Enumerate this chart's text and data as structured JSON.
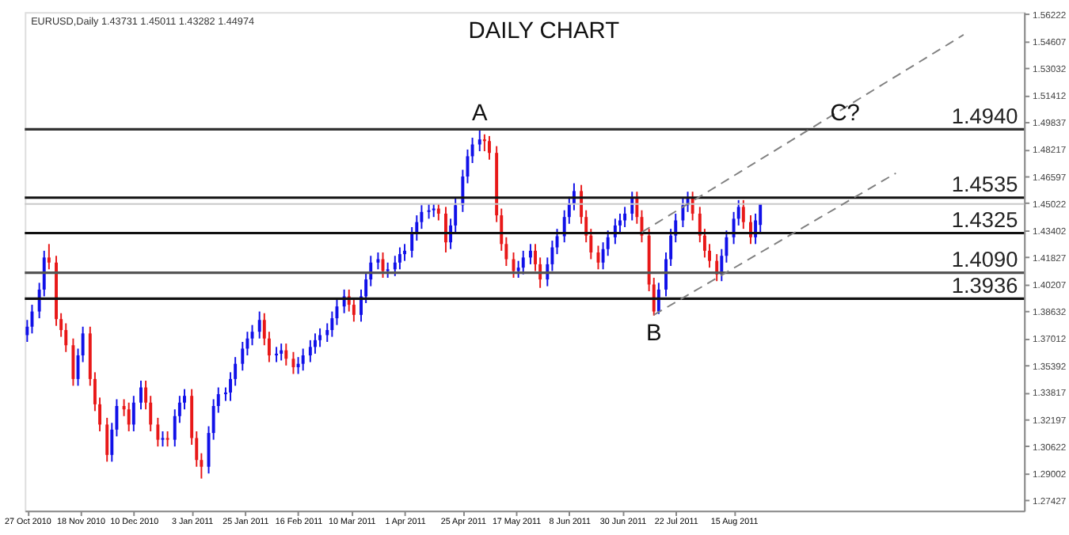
{
  "chart_data": {
    "type": "candlestick",
    "title": "DAILY CHART",
    "annotations": [
      "EURUSD,Daily 1.43731 1.45011 1.43282 1.44974",
      {
        "text": "A",
        "x": "2011-05-02",
        "y": 1.494
      },
      {
        "text": "B",
        "x": "2011-07-13",
        "y": 1.3836
      },
      {
        "text": "C?",
        "x": "2011-09-30",
        "y": 1.494
      }
    ],
    "x": [
      "2010-10-27",
      "2010-10-29",
      "2010-11-01",
      "2010-11-03",
      "2010-11-05",
      "2010-11-08",
      "2010-11-10",
      "2010-11-12",
      "2010-11-15",
      "2010-11-17",
      "2010-11-19",
      "2010-11-22",
      "2010-11-24",
      "2010-11-26",
      "2010-11-29",
      "2010-12-01",
      "2010-12-03",
      "2010-12-06",
      "2010-12-08",
      "2010-12-10",
      "2010-12-13",
      "2010-12-15",
      "2010-12-17",
      "2010-12-20",
      "2010-12-22",
      "2010-12-24",
      "2010-12-27",
      "2010-12-29",
      "2010-12-31",
      "2011-01-03",
      "2011-01-05",
      "2011-01-07",
      "2011-01-10",
      "2011-01-12",
      "2011-01-14",
      "2011-01-17",
      "2011-01-19",
      "2011-01-21",
      "2011-01-24",
      "2011-01-26",
      "2011-01-28",
      "2011-01-31",
      "2011-02-02",
      "2011-02-04",
      "2011-02-07",
      "2011-02-09",
      "2011-02-11",
      "2011-02-14",
      "2011-02-16",
      "2011-02-18",
      "2011-02-21",
      "2011-02-23",
      "2011-02-25",
      "2011-02-28",
      "2011-03-02",
      "2011-03-04",
      "2011-03-07",
      "2011-03-09",
      "2011-03-11",
      "2011-03-14",
      "2011-03-16",
      "2011-03-18",
      "2011-03-21",
      "2011-03-23",
      "2011-03-25",
      "2011-03-28",
      "2011-03-30",
      "2011-04-01",
      "2011-04-04",
      "2011-04-06",
      "2011-04-08",
      "2011-04-11",
      "2011-04-13",
      "2011-04-15",
      "2011-04-18",
      "2011-04-20",
      "2011-04-22",
      "2011-04-25",
      "2011-04-27",
      "2011-04-29",
      "2011-05-02",
      "2011-05-04",
      "2011-05-06",
      "2011-05-09",
      "2011-05-11",
      "2011-05-13",
      "2011-05-16",
      "2011-05-18",
      "2011-05-20",
      "2011-05-23",
      "2011-05-25",
      "2011-05-27",
      "2011-05-30",
      "2011-06-01",
      "2011-06-03",
      "2011-06-06",
      "2011-06-08",
      "2011-06-10",
      "2011-06-13",
      "2011-06-15",
      "2011-06-17",
      "2011-06-20",
      "2011-06-22",
      "2011-06-24",
      "2011-06-27",
      "2011-06-29",
      "2011-07-01",
      "2011-07-04",
      "2011-07-06",
      "2011-07-08",
      "2011-07-11",
      "2011-07-13",
      "2011-07-15",
      "2011-07-18",
      "2011-07-20",
      "2011-07-22",
      "2011-07-25",
      "2011-07-27",
      "2011-07-29",
      "2011-08-01",
      "2011-08-03",
      "2011-08-05",
      "2011-08-08",
      "2011-08-10",
      "2011-08-12",
      "2011-08-15",
      "2011-08-17",
      "2011-08-19",
      "2011-08-22",
      "2011-08-24",
      "2011-08-26"
    ],
    "ohlc": [
      [
        1.372,
        1.381,
        1.368,
        1.377
      ],
      [
        1.377,
        1.39,
        1.373,
        1.386
      ],
      [
        1.386,
        1.403,
        1.382,
        1.399
      ],
      [
        1.399,
        1.422,
        1.395,
        1.418
      ],
      [
        1.418,
        1.426,
        1.411,
        1.415
      ],
      [
        1.415,
        1.419,
        1.3775,
        1.3815
      ],
      [
        1.3815,
        1.385,
        1.371,
        1.375
      ],
      [
        1.375,
        1.379,
        1.362,
        1.366
      ],
      [
        1.366,
        1.37,
        1.342,
        1.346
      ],
      [
        1.346,
        1.364,
        1.342,
        1.36
      ],
      [
        1.36,
        1.377,
        1.356,
        1.373
      ],
      [
        1.373,
        1.377,
        1.342,
        1.346
      ],
      [
        1.346,
        1.35,
        1.327,
        1.331
      ],
      [
        1.331,
        1.335,
        1.315,
        1.319
      ],
      [
        1.319,
        1.323,
        1.297,
        1.301
      ],
      [
        1.301,
        1.32,
        1.297,
        1.316
      ],
      [
        1.316,
        1.334,
        1.312,
        1.33
      ],
      [
        1.33,
        1.334,
        1.324,
        1.328
      ],
      [
        1.328,
        1.332,
        1.315,
        1.319
      ],
      [
        1.319,
        1.336,
        1.315,
        1.332
      ],
      [
        1.332,
        1.345,
        1.328,
        1.341
      ],
      [
        1.341,
        1.345,
        1.328,
        1.332
      ],
      [
        1.332,
        1.336,
        1.315,
        1.319
      ],
      [
        1.319,
        1.323,
        1.306,
        1.31
      ],
      [
        1.31,
        1.315,
        1.306,
        1.311
      ],
      [
        1.311,
        1.315,
        1.306,
        1.31
      ],
      [
        1.31,
        1.328,
        1.306,
        1.324
      ],
      [
        1.324,
        1.336,
        1.32,
        1.332
      ],
      [
        1.332,
        1.34,
        1.328,
        1.336
      ],
      [
        1.336,
        1.34,
        1.307,
        1.311
      ],
      [
        1.311,
        1.315,
        1.294,
        1.298
      ],
      [
        1.298,
        1.302,
        1.287,
        1.294
      ],
      [
        1.294,
        1.318,
        1.29,
        1.314
      ],
      [
        1.314,
        1.334,
        1.31,
        1.33
      ],
      [
        1.33,
        1.341,
        1.326,
        1.337
      ],
      [
        1.337,
        1.341,
        1.333,
        1.338
      ],
      [
        1.338,
        1.35,
        1.333,
        1.346
      ],
      [
        1.346,
        1.359,
        1.342,
        1.355
      ],
      [
        1.355,
        1.368,
        1.351,
        1.364
      ],
      [
        1.364,
        1.374,
        1.36,
        1.37
      ],
      [
        1.37,
        1.378,
        1.366,
        1.374
      ],
      [
        1.374,
        1.386,
        1.37,
        1.381
      ],
      [
        1.381,
        1.385,
        1.366,
        1.37
      ],
      [
        1.37,
        1.374,
        1.356,
        1.36
      ],
      [
        1.36,
        1.365,
        1.356,
        1.361
      ],
      [
        1.361,
        1.367,
        1.357,
        1.363
      ],
      [
        1.363,
        1.367,
        1.354,
        1.358
      ],
      [
        1.358,
        1.362,
        1.349,
        1.353
      ],
      [
        1.353,
        1.359,
        1.349,
        1.355
      ],
      [
        1.355,
        1.364,
        1.351,
        1.36
      ],
      [
        1.36,
        1.369,
        1.356,
        1.365
      ],
      [
        1.365,
        1.373,
        1.361,
        1.369
      ],
      [
        1.369,
        1.376,
        1.365,
        1.372
      ],
      [
        1.372,
        1.379,
        1.368,
        1.375
      ],
      [
        1.375,
        1.386,
        1.371,
        1.382
      ],
      [
        1.382,
        1.393,
        1.378,
        1.389
      ],
      [
        1.389,
        1.399,
        1.385,
        1.395
      ],
      [
        1.395,
        1.399,
        1.386,
        1.39
      ],
      [
        1.39,
        1.394,
        1.38,
        1.384
      ],
      [
        1.384,
        1.399,
        1.38,
        1.395
      ],
      [
        1.395,
        1.409,
        1.391,
        1.405
      ],
      [
        1.405,
        1.419,
        1.401,
        1.415
      ],
      [
        1.415,
        1.421,
        1.411,
        1.417
      ],
      [
        1.417,
        1.421,
        1.406,
        1.41
      ],
      [
        1.41,
        1.415,
        1.406,
        1.411
      ],
      [
        1.411,
        1.419,
        1.407,
        1.415
      ],
      [
        1.415,
        1.424,
        1.411,
        1.42
      ],
      [
        1.42,
        1.426,
        1.416,
        1.422
      ],
      [
        1.422,
        1.436,
        1.418,
        1.432
      ],
      [
        1.432,
        1.443,
        1.428,
        1.439
      ],
      [
        1.439,
        1.449,
        1.435,
        1.445
      ],
      [
        1.445,
        1.45,
        1.441,
        1.446
      ],
      [
        1.446,
        1.45,
        1.442,
        1.447
      ],
      [
        1.447,
        1.45,
        1.44,
        1.444
      ],
      [
        1.444,
        1.448,
        1.421,
        1.427
      ],
      [
        1.427,
        1.441,
        1.423,
        1.437
      ],
      [
        1.437,
        1.453,
        1.433,
        1.449
      ],
      [
        1.449,
        1.47,
        1.445,
        1.466
      ],
      [
        1.466,
        1.482,
        1.462,
        1.478
      ],
      [
        1.478,
        1.489,
        1.474,
        1.485
      ],
      [
        1.485,
        1.494,
        1.481,
        1.488
      ],
      [
        1.488,
        1.491,
        1.481,
        1.487
      ],
      [
        1.487,
        1.49,
        1.476,
        1.48
      ],
      [
        1.48,
        1.484,
        1.439,
        1.443
      ],
      [
        1.443,
        1.447,
        1.422,
        1.426
      ],
      [
        1.426,
        1.43,
        1.413,
        1.417
      ],
      [
        1.417,
        1.421,
        1.406,
        1.41
      ],
      [
        1.41,
        1.416,
        1.406,
        1.412
      ],
      [
        1.412,
        1.422,
        1.408,
        1.418
      ],
      [
        1.418,
        1.426,
        1.414,
        1.422
      ],
      [
        1.422,
        1.426,
        1.41,
        1.414
      ],
      [
        1.414,
        1.418,
        1.4,
        1.405
      ],
      [
        1.405,
        1.418,
        1.401,
        1.414
      ],
      [
        1.414,
        1.428,
        1.41,
        1.424
      ],
      [
        1.424,
        1.435,
        1.42,
        1.4306
      ],
      [
        1.4306,
        1.446,
        1.427,
        1.442
      ],
      [
        1.442,
        1.454,
        1.438,
        1.45
      ],
      [
        1.45,
        1.462,
        1.446,
        1.4574
      ],
      [
        1.4574,
        1.461,
        1.438,
        1.442
      ],
      [
        1.442,
        1.446,
        1.427,
        1.431
      ],
      [
        1.431,
        1.435,
        1.417,
        1.421
      ],
      [
        1.421,
        1.425,
        1.411,
        1.415
      ],
      [
        1.415,
        1.427,
        1.411,
        1.423
      ],
      [
        1.423,
        1.434,
        1.419,
        1.43
      ],
      [
        1.43,
        1.441,
        1.426,
        1.437
      ],
      [
        1.437,
        1.444,
        1.433,
        1.44
      ],
      [
        1.44,
        1.448,
        1.436,
        1.444
      ],
      [
        1.444,
        1.457,
        1.44,
        1.453
      ],
      [
        1.453,
        1.457,
        1.438,
        1.442
      ],
      [
        1.442,
        1.446,
        1.427,
        1.431
      ],
      [
        1.431,
        1.435,
        1.398,
        1.402
      ],
      [
        1.402,
        1.406,
        1.3836,
        1.386
      ],
      [
        1.386,
        1.403,
        1.3845,
        1.399
      ],
      [
        1.399,
        1.421,
        1.395,
        1.417
      ],
      [
        1.417,
        1.435,
        1.413,
        1.431
      ],
      [
        1.431,
        1.444,
        1.427,
        1.44
      ],
      [
        1.44,
        1.453,
        1.436,
        1.449
      ],
      [
        1.449,
        1.457,
        1.445,
        1.453
      ],
      [
        1.453,
        1.457,
        1.44,
        1.444
      ],
      [
        1.444,
        1.448,
        1.427,
        1.431
      ],
      [
        1.431,
        1.435,
        1.418,
        1.422
      ],
      [
        1.422,
        1.426,
        1.412,
        1.416
      ],
      [
        1.416,
        1.42,
        1.404,
        1.408
      ],
      [
        1.408,
        1.423,
        1.404,
        1.419
      ],
      [
        1.419,
        1.434,
        1.415,
        1.43
      ],
      [
        1.43,
        1.445,
        1.426,
        1.441
      ],
      [
        1.441,
        1.452,
        1.437,
        1.448
      ],
      [
        1.448,
        1.452,
        1.435,
        1.439
      ],
      [
        1.439,
        1.443,
        1.426,
        1.43
      ],
      [
        1.43,
        1.444,
        1.426,
        1.44
      ],
      [
        1.43731,
        1.45011,
        1.43282,
        1.44974
      ]
    ],
    "colors": [
      "#1010e8",
      "#1010e8",
      "#1010e8",
      "#1010e8",
      "#e81818",
      "#e81818",
      "#e81818",
      "#e81818",
      "#e81818",
      "#1010e8",
      "#1010e8",
      "#e81818",
      "#e81818",
      "#e81818",
      "#e81818",
      "#1010e8",
      "#1010e8",
      "#e81818",
      "#e81818",
      "#1010e8",
      "#1010e8",
      "#e81818",
      "#e81818",
      "#e81818",
      "#1010e8",
      "#e81818",
      "#1010e8",
      "#1010e8",
      "#1010e8",
      "#e81818",
      "#e81818",
      "#e81818",
      "#1010e8",
      "#1010e8",
      "#1010e8",
      "#1010e8",
      "#1010e8",
      "#1010e8",
      "#1010e8",
      "#1010e8",
      "#1010e8",
      "#1010e8",
      "#e81818",
      "#e81818",
      "#1010e8",
      "#1010e8",
      "#e81818",
      "#e81818",
      "#1010e8",
      "#1010e8",
      "#1010e8",
      "#1010e8",
      "#1010e8",
      "#1010e8",
      "#1010e8",
      "#1010e8",
      "#1010e8",
      "#e81818",
      "#e81818",
      "#1010e8",
      "#1010e8",
      "#1010e8",
      "#1010e8",
      "#e81818",
      "#1010e8",
      "#1010e8",
      "#1010e8",
      "#1010e8",
      "#1010e8",
      "#1010e8",
      "#1010e8",
      "#1010e8",
      "#1010e8",
      "#e81818",
      "#e81818",
      "#1010e8",
      "#1010e8",
      "#1010e8",
      "#1010e8",
      "#1010e8",
      "#1010e8",
      "#e81818",
      "#e81818",
      "#e81818",
      "#e81818",
      "#e81818",
      "#e81818",
      "#1010e8",
      "#1010e8",
      "#1010e8",
      "#e81818",
      "#e81818",
      "#1010e8",
      "#1010e8",
      "#1010e8",
      "#1010e8",
      "#1010e8",
      "#1010e8",
      "#e81818",
      "#e81818",
      "#e81818",
      "#e81818",
      "#1010e8",
      "#1010e8",
      "#1010e8",
      "#1010e8",
      "#1010e8",
      "#1010e8",
      "#e81818",
      "#e81818",
      "#e81818",
      "#e81818",
      "#1010e8",
      "#1010e8",
      "#1010e8",
      "#1010e8",
      "#1010e8",
      "#1010e8",
      "#e81818",
      "#e81818",
      "#e81818",
      "#e81818",
      "#e81818",
      "#1010e8",
      "#1010e8",
      "#1010e8",
      "#1010e8",
      "#e81818",
      "#e81818",
      "#1010e8",
      "#1010e8"
    ],
    "xlim": [
      "2010-10-26",
      "2011-12-13"
    ],
    "xticks": [
      {
        "value": "2010-10-27",
        "label": "27 Oct 2010"
      },
      {
        "value": "2010-11-18",
        "label": "18 Nov 2010"
      },
      {
        "value": "2010-12-10",
        "label": "10 Dec 2010"
      },
      {
        "value": "2011-01-03",
        "label": "3 Jan 2011"
      },
      {
        "value": "2011-01-25",
        "label": "25 Jan 2011"
      },
      {
        "value": "2011-02-16",
        "label": "16 Feb 2011"
      },
      {
        "value": "2011-03-10",
        "label": "10 Mar 2011"
      },
      {
        "value": "2011-04-01",
        "label": "1 Apr 2011"
      },
      {
        "value": "2011-04-25",
        "label": "25 Apr 2011"
      },
      {
        "value": "2011-05-17",
        "label": "17 May 2011"
      },
      {
        "value": "2011-06-08",
        "label": "8 Jun 2011"
      },
      {
        "value": "2011-06-30",
        "label": "30 Jun 2011"
      },
      {
        "value": "2011-07-22",
        "label": "22 Jul 2011"
      },
      {
        "value": "2011-08-15",
        "label": "15 Aug 2011"
      }
    ],
    "ylim": [
      1.268,
      1.5635
    ],
    "yticks": [
      1.56222,
      1.54607,
      1.53032,
      1.51412,
      1.49837,
      1.48217,
      1.46597,
      1.45022,
      1.43402,
      1.41827,
      1.40207,
      1.38632,
      1.37012,
      1.35392,
      1.33817,
      1.32197,
      1.30622,
      1.29002,
      1.27427
    ],
    "ref_lines": [
      {
        "axis": "y",
        "value": 1.494,
        "label": "1.4940",
        "color": "#333333"
      },
      {
        "axis": "y",
        "value": 1.4535,
        "label": "1.4535",
        "color": "#111111"
      },
      {
        "axis": "y",
        "value": 1.44974,
        "label": null,
        "color": "#c8c8c8"
      },
      {
        "axis": "y",
        "value": 1.4325,
        "label": "1.4325",
        "color": "#111111"
      },
      {
        "axis": "y",
        "value": 1.409,
        "label": "1.4090",
        "color": "#555555"
      },
      {
        "axis": "y",
        "value": 1.3936,
        "label": "1.3936",
        "color": "#111111"
      }
    ],
    "series": [
      {
        "type": "line",
        "color": "#808080",
        "line_style": "dashed",
        "x": [
          "2011-07-08",
          "2011-11-18"
        ],
        "values": [
          1.433,
          1.55
        ]
      },
      {
        "type": "line",
        "color": "#808080",
        "line_style": "dashed",
        "x": [
          "2011-07-13",
          "2011-10-21"
        ],
        "values": [
          1.384,
          1.468
        ]
      }
    ],
    "grid": false
  }
}
